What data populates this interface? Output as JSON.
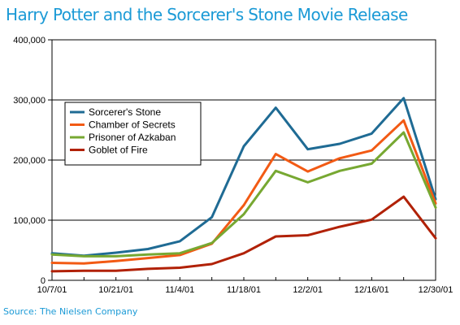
{
  "chart_data": {
    "type": "line",
    "title": "Harry Potter and the Sorcerer's Stone Movie Release",
    "source": "Source: The Nielsen Company",
    "x": [
      "10/7/01",
      "10/14/01",
      "10/21/01",
      "10/28/01",
      "11/4/01",
      "11/11/01",
      "11/18/01",
      "11/25/01",
      "12/2/01",
      "12/9/01",
      "12/16/01",
      "12/23/01",
      "12/30/01"
    ],
    "x_tick_labels": [
      "10/7/01",
      "10/21/01",
      "11/4/01",
      "11/18/01",
      "12/2/01",
      "12/16/01",
      "12/30/01"
    ],
    "y_tick_labels": [
      "0",
      "100,000",
      "200,000",
      "300,000",
      "400,000"
    ],
    "ylim": [
      0,
      400000
    ],
    "grid": "horizontal",
    "legend_position": "upper-left",
    "series": [
      {
        "name": "Sorcerer's Stone",
        "color": "#1f6b94",
        "values": [
          45000,
          41000,
          46000,
          52000,
          65000,
          105000,
          223000,
          287000,
          218000,
          227000,
          244000,
          303000,
          135000
        ]
      },
      {
        "name": "Chamber of Secrets",
        "color": "#f25a14",
        "values": [
          29000,
          28000,
          32000,
          37000,
          42000,
          61000,
          125000,
          210000,
          181000,
          203000,
          216000,
          266000,
          128000
        ]
      },
      {
        "name": "Prisoner of Azkaban",
        "color": "#77a832",
        "values": [
          43000,
          40000,
          40000,
          43000,
          45000,
          62000,
          110000,
          182000,
          163000,
          182000,
          194000,
          246000,
          121000
        ]
      },
      {
        "name": "Goblet of Fire",
        "color": "#b12106",
        "values": [
          15000,
          16000,
          16000,
          19000,
          21000,
          27000,
          45000,
          73000,
          75000,
          89000,
          101000,
          139000,
          70000
        ]
      }
    ]
  }
}
